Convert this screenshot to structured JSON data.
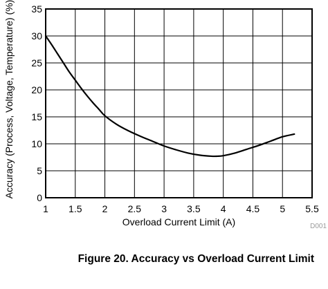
{
  "caption": "Figure 20. Accuracy vs Overload Current Limit",
  "figure_code": "D001",
  "chart_data": {
    "type": "line",
    "xlabel": "Overload Current Limit (A)",
    "ylabel": "Accuracy (Process, Voltage, Temperature) (%)",
    "xlim": [
      1,
      5.5
    ],
    "ylim": [
      0,
      35
    ],
    "xticks": [
      1,
      1.5,
      2,
      2.5,
      3,
      3.5,
      4,
      4.5,
      5,
      5.5
    ],
    "yticks": [
      0,
      5,
      10,
      15,
      20,
      25,
      30,
      35
    ],
    "grid": true,
    "series": [
      {
        "x": [
          1.0,
          1.1,
          1.2,
          1.3,
          1.4,
          1.5,
          1.6,
          1.7,
          1.8,
          1.9,
          2.0,
          2.2,
          2.4,
          2.6,
          2.8,
          3.0,
          3.2,
          3.4,
          3.6,
          3.8,
          3.9,
          4.0,
          4.2,
          4.4,
          4.6,
          4.8,
          5.0,
          5.2
        ],
        "y": [
          30.0,
          28.4,
          26.7,
          25.0,
          23.3,
          21.8,
          20.3,
          18.9,
          17.6,
          16.4,
          15.2,
          13.6,
          12.4,
          11.4,
          10.5,
          9.6,
          8.9,
          8.3,
          7.9,
          7.7,
          7.7,
          7.8,
          8.3,
          9.0,
          9.7,
          10.5,
          11.3,
          11.8
        ]
      }
    ]
  }
}
